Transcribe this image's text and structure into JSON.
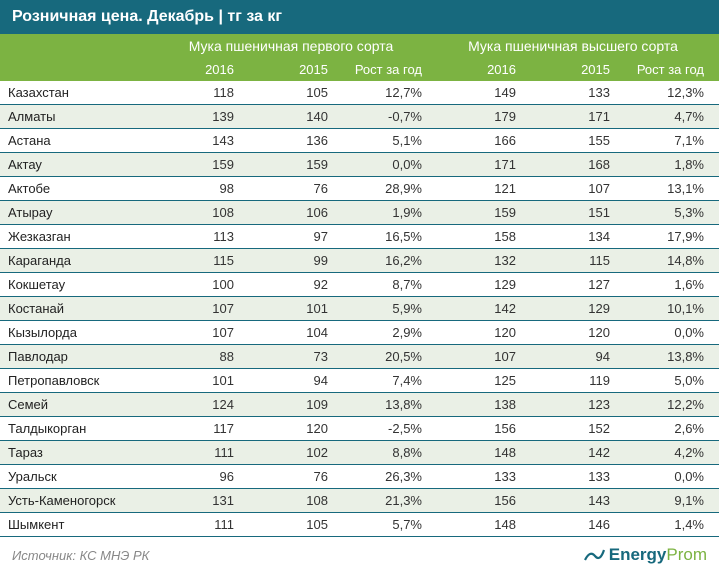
{
  "title": "Розничная цена. Декабрь | тг за кг",
  "group_headers": [
    "Мука пшеничная первого сорта",
    "Мука пшеничная высшего сорта"
  ],
  "sub_headers": [
    "2016",
    "2015",
    "Рост за год",
    "2016",
    "2015",
    "Рост за год"
  ],
  "rows": [
    {
      "region": "Казахстан",
      "a16": "118",
      "a15": "105",
      "ag": "12,7%",
      "b16": "149",
      "b15": "133",
      "bg": "12,3%"
    },
    {
      "region": "Алматы",
      "a16": "139",
      "a15": "140",
      "ag": "-0,7%",
      "b16": "179",
      "b15": "171",
      "bg": "4,7%"
    },
    {
      "region": "Астана",
      "a16": "143",
      "a15": "136",
      "ag": "5,1%",
      "b16": "166",
      "b15": "155",
      "bg": "7,1%"
    },
    {
      "region": "Актау",
      "a16": "159",
      "a15": "159",
      "ag": "0,0%",
      "b16": "171",
      "b15": "168",
      "bg": "1,8%"
    },
    {
      "region": "Актобе",
      "a16": "98",
      "a15": "76",
      "ag": "28,9%",
      "b16": "121",
      "b15": "107",
      "bg": "13,1%"
    },
    {
      "region": "Атырау",
      "a16": "108",
      "a15": "106",
      "ag": "1,9%",
      "b16": "159",
      "b15": "151",
      "bg": "5,3%"
    },
    {
      "region": "Жезказган",
      "a16": "113",
      "a15": "97",
      "ag": "16,5%",
      "b16": "158",
      "b15": "134",
      "bg": "17,9%"
    },
    {
      "region": "Караганда",
      "a16": "115",
      "a15": "99",
      "ag": "16,2%",
      "b16": "132",
      "b15": "115",
      "bg": "14,8%"
    },
    {
      "region": "Кокшетау",
      "a16": "100",
      "a15": "92",
      "ag": "8,7%",
      "b16": "129",
      "b15": "127",
      "bg": "1,6%"
    },
    {
      "region": "Костанай",
      "a16": "107",
      "a15": "101",
      "ag": "5,9%",
      "b16": "142",
      "b15": "129",
      "bg": "10,1%"
    },
    {
      "region": "Кызылорда",
      "a16": "107",
      "a15": "104",
      "ag": "2,9%",
      "b16": "120",
      "b15": "120",
      "bg": "0,0%"
    },
    {
      "region": "Павлодар",
      "a16": "88",
      "a15": "73",
      "ag": "20,5%",
      "b16": "107",
      "b15": "94",
      "bg": "13,8%"
    },
    {
      "region": "Петропавловск",
      "a16": "101",
      "a15": "94",
      "ag": "7,4%",
      "b16": "125",
      "b15": "119",
      "bg": "5,0%"
    },
    {
      "region": "Семей",
      "a16": "124",
      "a15": "109",
      "ag": "13,8%",
      "b16": "138",
      "b15": "123",
      "bg": "12,2%"
    },
    {
      "region": "Талдыкорган",
      "a16": "117",
      "a15": "120",
      "ag": "-2,5%",
      "b16": "156",
      "b15": "152",
      "bg": "2,6%"
    },
    {
      "region": "Тараз",
      "a16": "111",
      "a15": "102",
      "ag": "8,8%",
      "b16": "148",
      "b15": "142",
      "bg": "4,2%"
    },
    {
      "region": "Уральск",
      "a16": "96",
      "a15": "76",
      "ag": "26,3%",
      "b16": "133",
      "b15": "133",
      "bg": "0,0%"
    },
    {
      "region": "Усть-Каменогорск",
      "a16": "131",
      "a15": "108",
      "ag": "21,3%",
      "b16": "156",
      "b15": "143",
      "bg": "9,1%"
    },
    {
      "region": "Шымкент",
      "a16": "111",
      "a15": "105",
      "ag": "5,7%",
      "b16": "148",
      "b15": "146",
      "bg": "1,4%"
    }
  ],
  "source": "Источник: КС МНЭ РК",
  "logo": {
    "prefix": "Energy",
    "suffix": "Prom"
  },
  "colors": {
    "title_bg": "#17697d",
    "header_bg": "#7cb342",
    "stripe_bg": "#eaf0e6",
    "border": "#17697d"
  }
}
